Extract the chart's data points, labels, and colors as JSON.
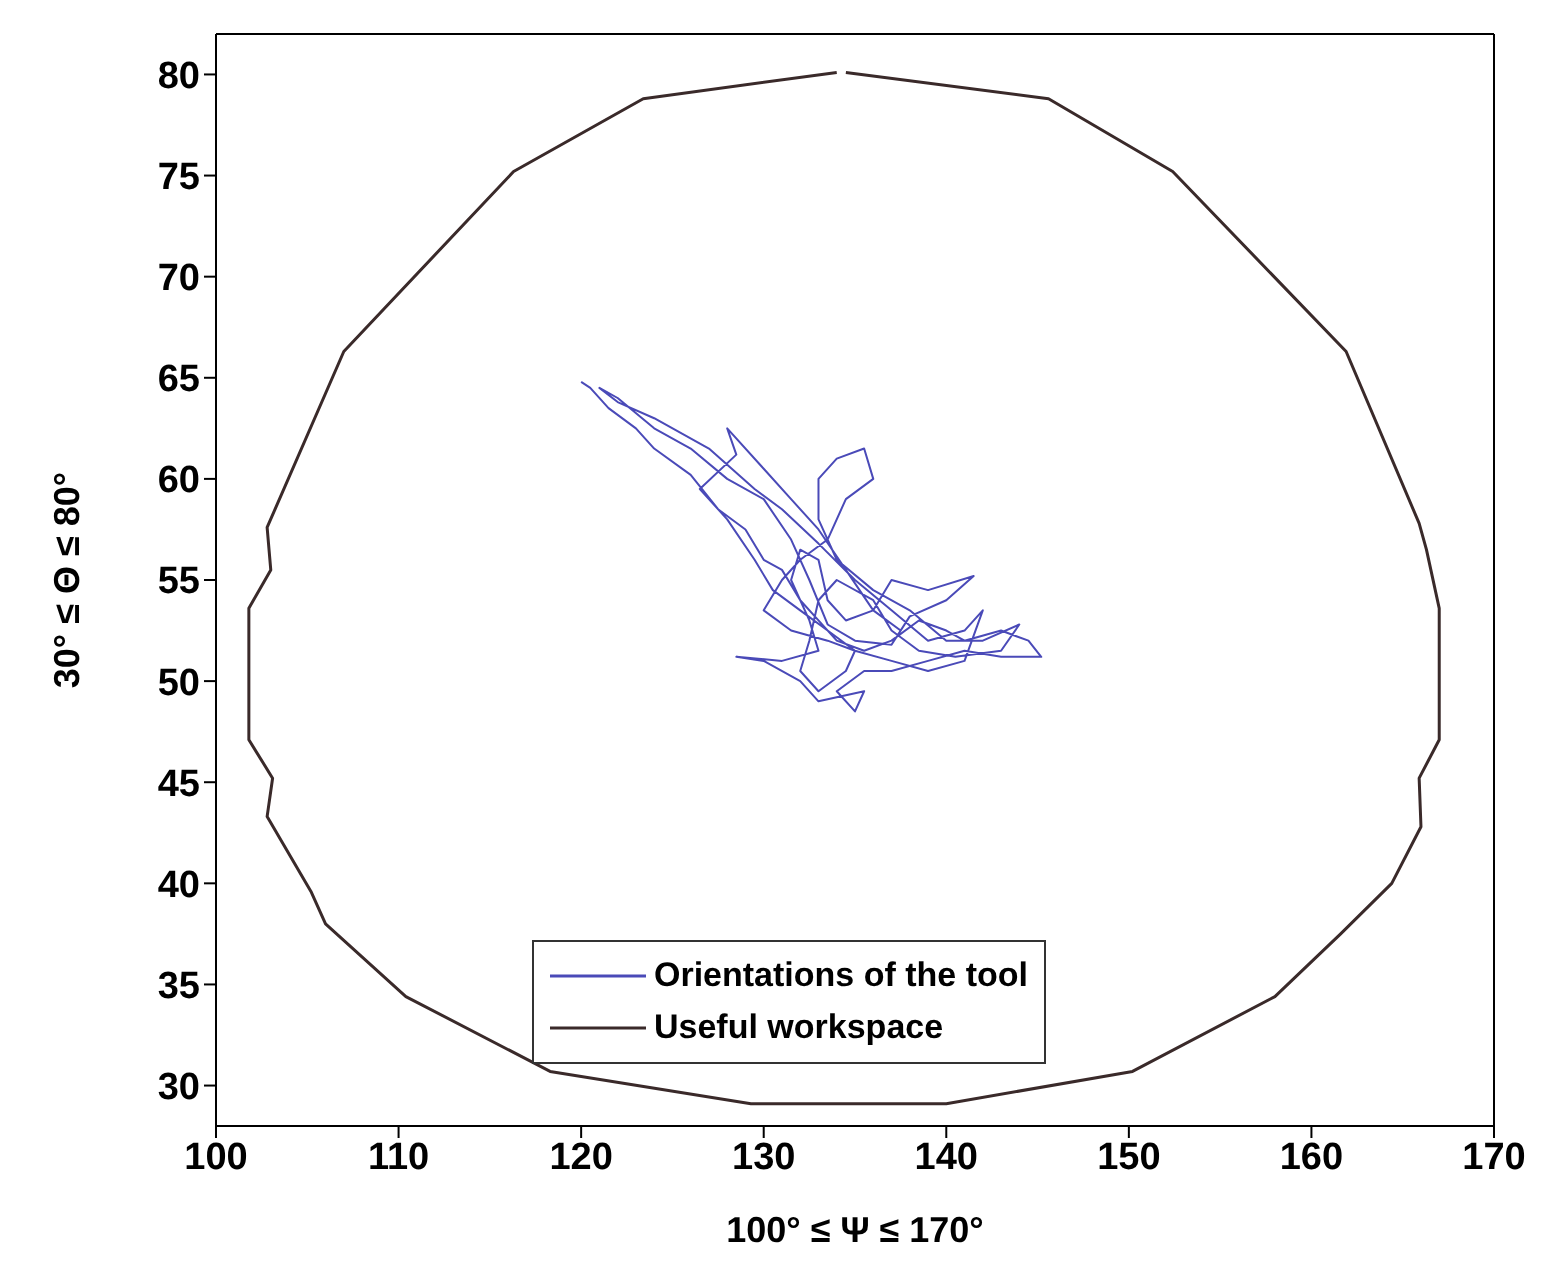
{
  "chart_data": {
    "type": "line",
    "xlabel": "100° ≤ Ψ ≤ 170°",
    "ylabel": "30° ≤ Θ ≤ 80°",
    "xlim": [
      100,
      170
    ],
    "ylim": [
      28,
      82
    ],
    "xticks": [
      100,
      110,
      120,
      130,
      140,
      150,
      160,
      170
    ],
    "yticks": [
      30,
      35,
      40,
      45,
      50,
      55,
      60,
      65,
      70,
      75,
      80
    ],
    "grid": false,
    "legend": "bottom",
    "marker": "none",
    "line_style": "solid",
    "series": [
      {
        "name": "Orientations of the tool",
        "color": "#4a4ab8",
        "x": [
          120.0,
          120.5,
          121.5,
          123,
          124,
          126,
          127.5,
          129,
          130,
          131,
          132,
          133,
          134,
          135.5,
          137,
          138.5,
          140,
          141,
          143,
          144.5,
          145.2,
          143,
          141,
          139,
          137,
          135.5,
          134,
          135,
          135.5,
          133,
          132,
          130,
          128.5,
          131,
          133,
          132.5,
          131.5,
          132,
          133,
          133.5,
          134.5,
          136,
          137,
          139,
          141.5,
          140,
          138,
          137,
          135,
          133.5,
          132.5,
          131.5,
          130,
          128,
          126,
          124,
          122,
          121,
          122,
          124,
          127,
          129.5,
          131,
          133,
          135,
          137,
          139,
          141,
          142,
          141,
          139,
          137,
          135,
          133.5,
          131.5,
          130,
          131,
          132,
          133.5,
          134.5,
          136,
          135.5,
          134,
          133,
          133,
          134,
          136,
          138,
          140,
          142,
          144,
          143,
          140.5,
          138.5,
          137,
          136,
          134,
          133,
          132.5,
          132,
          133,
          134.5,
          135,
          133.5,
          132,
          130.5,
          129.5,
          128,
          126.5,
          128.5,
          128,
          130,
          131.5,
          133,
          134.5,
          136,
          137.5
        ],
        "values": [
          64.8,
          64.5,
          63.5,
          62.5,
          61.5,
          60.2,
          58.5,
          57.5,
          56,
          55.5,
          54,
          53,
          52,
          51.5,
          52,
          53,
          52.5,
          52,
          52.5,
          52,
          51.2,
          51.2,
          51.5,
          51,
          50.5,
          50.5,
          49.5,
          48.5,
          49.5,
          49,
          50,
          51,
          51.2,
          51,
          51.5,
          53,
          55,
          56.5,
          56,
          54,
          53,
          53.5,
          55,
          54.5,
          55.2,
          54,
          53.2,
          51.8,
          52,
          52.8,
          55,
          57,
          59,
          60,
          61.5,
          62.5,
          64,
          64.5,
          63.8,
          63,
          61.5,
          59.5,
          58.5,
          56.8,
          55,
          53.5,
          52,
          52.5,
          53.5,
          51,
          50.5,
          51,
          51.5,
          52,
          52.5,
          53.5,
          55,
          56,
          57,
          59,
          60,
          61.5,
          61,
          60,
          58,
          56,
          54.5,
          53.5,
          52,
          52,
          52.8,
          51.5,
          51.2,
          51.5,
          52.5,
          54,
          55,
          54,
          52,
          50.5,
          49.5,
          50.5,
          51.5,
          52.5,
          53.5,
          54.5,
          56,
          58,
          59.5,
          61.2,
          62.5,
          60.5,
          59,
          57.5,
          55.5,
          53.5,
          52.5
        ]
      },
      {
        "name": "Useful workspace",
        "color": "#3a2a2a",
        "x": [
          134.5,
          145.6,
          152.4,
          161.9,
          165.9,
          166.3,
          167.0,
          167.0,
          165.9,
          166.0,
          164.4,
          161.6,
          158.0,
          150.2,
          140.0,
          129.3,
          118.3,
          110.4,
          106.0,
          105.2,
          102.8,
          103.1,
          101.8,
          101.8,
          103.0,
          102.8,
          107.0,
          116.3,
          123.4,
          134.0
        ],
        "values": [
          80.1,
          78.8,
          75.2,
          66.3,
          57.8,
          56.5,
          53.6,
          47.1,
          45.2,
          42.8,
          40.0,
          37.5,
          34.4,
          30.7,
          29.1,
          29.1,
          30.7,
          34.4,
          38.0,
          39.6,
          43.3,
          45.2,
          47.1,
          53.6,
          55.5,
          57.6,
          66.3,
          75.2,
          78.8,
          80.1
        ]
      }
    ]
  }
}
